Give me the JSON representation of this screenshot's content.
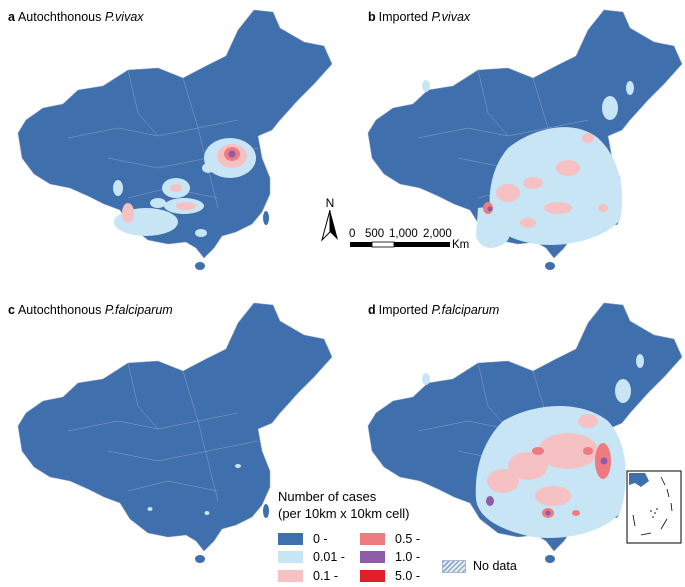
{
  "panels": [
    {
      "letter": "a",
      "prefix": "Autochthonous",
      "species": "P.vivax"
    },
    {
      "letter": "b",
      "prefix": "Imported",
      "species": "P.vivax"
    },
    {
      "letter": "c",
      "prefix": "Autochthonous",
      "species": "P.falciparum"
    },
    {
      "letter": "d",
      "prefix": "Imported",
      "species": "P.falciparum"
    }
  ],
  "legend": {
    "title_line1": "Number of cases",
    "title_line2": "(per 10km x 10km cell)",
    "classes": [
      {
        "label": "0 -",
        "color": "#3f6fad"
      },
      {
        "label": "0.01 -",
        "color": "#c7e5f5"
      },
      {
        "label": "0.1 -",
        "color": "#f5c1c3"
      },
      {
        "label": "0.5 -",
        "color": "#ee7b80"
      },
      {
        "label": "1.0 -",
        "color": "#8d5ba8"
      },
      {
        "label": "5.0 -",
        "color": "#e01f2a"
      }
    ],
    "no_data_label": "No data"
  },
  "north_arrow": {
    "label": "N"
  },
  "scale_bar": {
    "ticks": [
      "0",
      "500",
      "1,000",
      "2,000"
    ],
    "unit": "Km"
  },
  "colors": {
    "base": "#3f6fad",
    "border": "#8aa3c7"
  }
}
